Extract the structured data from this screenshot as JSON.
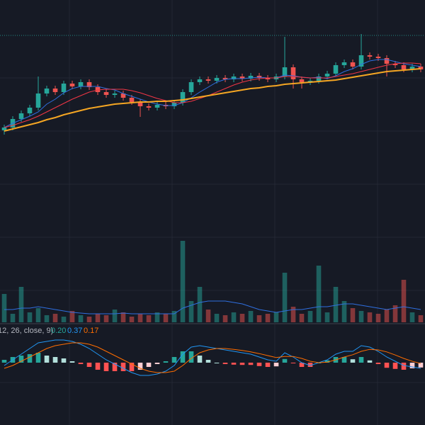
{
  "chart_data": {
    "type": "candlestick",
    "ylim": [
      0,
      330
    ],
    "price_line": 280,
    "open": [
      146,
      150,
      162,
      170,
      178,
      198,
      205,
      200,
      212,
      208,
      214,
      207,
      200,
      196,
      198,
      192,
      186,
      180,
      178,
      182,
      180,
      185,
      200,
      214,
      218,
      216,
      220,
      218,
      222,
      219,
      223,
      220,
      218,
      222,
      235,
      218,
      214,
      216,
      222,
      226,
      238,
      242,
      236,
      252,
      250,
      248,
      240,
      238,
      232,
      236
    ],
    "high": [
      154,
      166,
      174,
      182,
      222,
      209,
      209,
      216,
      216,
      218,
      218,
      211,
      204,
      202,
      202,
      196,
      190,
      184,
      186,
      186,
      189,
      204,
      218,
      222,
      222,
      224,
      224,
      226,
      226,
      227,
      227,
      224,
      226,
      278,
      239,
      222,
      220,
      226,
      230,
      242,
      246,
      246,
      282,
      256,
      254,
      252,
      244,
      242,
      240,
      240
    ],
    "low": [
      140,
      146,
      158,
      166,
      174,
      194,
      196,
      196,
      204,
      204,
      203,
      196,
      192,
      192,
      188,
      182,
      165,
      174,
      174,
      176,
      176,
      181,
      196,
      210,
      212,
      212,
      214,
      214,
      215,
      215,
      216,
      214,
      214,
      218,
      205,
      205,
      210,
      212,
      218,
      222,
      234,
      232,
      232,
      246,
      244,
      222,
      234,
      228,
      228,
      228
    ],
    "close": [
      150,
      162,
      170,
      178,
      198,
      205,
      200,
      212,
      208,
      214,
      207,
      200,
      196,
      198,
      192,
      186,
      180,
      178,
      182,
      180,
      185,
      200,
      214,
      218,
      216,
      220,
      218,
      222,
      219,
      223,
      220,
      218,
      222,
      235,
      218,
      214,
      216,
      222,
      226,
      238,
      242,
      236,
      252,
      250,
      248,
      240,
      238,
      232,
      236,
      232
    ],
    "up_color": "#26a69a",
    "down_color": "#ef5350",
    "ma_series": [
      {
        "color": "#2f6fe0",
        "values": [
          150,
          156,
          161,
          166,
          172,
          183,
          190,
          199,
          205,
          208,
          208,
          208,
          205,
          203,
          198,
          194,
          190,
          186,
          183,
          181,
          181,
          185,
          192,
          200,
          207,
          214,
          218,
          219,
          219,
          220,
          221,
          220,
          220,
          224,
          223,
          221,
          220,
          221,
          219,
          223,
          229,
          233,
          239,
          244,
          246,
          246,
          243,
          240,
          238,
          236
        ]
      },
      {
        "color": "#f23645",
        "values": [
          150,
          153,
          157,
          161,
          166,
          172,
          178,
          184,
          190,
          195,
          200,
          203,
          204,
          204,
          204,
          202,
          199,
          195,
          191,
          188,
          185,
          185,
          187,
          191,
          195,
          200,
          205,
          210,
          214,
          217,
          219,
          220,
          220,
          222,
          222,
          221,
          220,
          220,
          220,
          222,
          224,
          226,
          229,
          232,
          235,
          238,
          240,
          241,
          241,
          240
        ]
      },
      {
        "color": "#f5a623",
        "values": [
          145,
          148,
          151,
          154,
          157,
          161,
          164,
          168,
          171,
          174,
          177,
          179,
          181,
          183,
          184,
          185,
          186,
          186,
          187,
          187,
          188,
          189,
          191,
          193,
          195,
          197,
          199,
          201,
          203,
          205,
          206,
          208,
          209,
          211,
          212,
          213,
          214,
          215,
          216,
          217,
          219,
          221,
          223,
          225,
          227,
          229,
          230,
          231,
          232,
          233
        ]
      }
    ],
    "volume_lim": [
      0,
      130
    ],
    "volume": [
      40,
      12,
      50,
      14,
      20,
      10,
      12,
      8,
      16,
      10,
      8,
      12,
      10,
      18,
      14,
      8,
      12,
      10,
      14,
      12,
      16,
      115,
      30,
      50,
      18,
      12,
      10,
      14,
      12,
      16,
      10,
      12,
      14,
      70,
      22,
      12,
      16,
      80,
      14,
      50,
      30,
      20,
      16,
      14,
      12,
      18,
      24,
      60,
      14,
      10
    ],
    "volume_ma": {
      "color": "#2f6fe0",
      "values": [
        18,
        18,
        20,
        20,
        22,
        20,
        18,
        16,
        14,
        13,
        12,
        12,
        12,
        12,
        13,
        12,
        12,
        12,
        12,
        12,
        12,
        20,
        24,
        28,
        30,
        30,
        30,
        28,
        26,
        22,
        18,
        16,
        14,
        16,
        18,
        18,
        20,
        22,
        22,
        24,
        26,
        26,
        24,
        22,
        20,
        18,
        20,
        22,
        20,
        18
      ]
    },
    "macd_lim": [
      -1.1,
      1.1
    ],
    "macd_legend": {
      "params": "12, 26, close, 9)",
      "values": [
        "0.20",
        "0.37",
        "0.17"
      ],
      "colors": [
        "#26a69a",
        "#2196f3",
        "#ff6d00"
      ]
    },
    "macd": {
      "color": "#2196f3",
      "values": [
        -0.1,
        0.1,
        0.3,
        0.5,
        0.7,
        0.75,
        0.8,
        0.8,
        0.75,
        0.65,
        0.5,
        0.3,
        0.1,
        -0.05,
        -0.2,
        -0.35,
        -0.45,
        -0.45,
        -0.4,
        -0.3,
        -0.1,
        0.3,
        0.55,
        0.6,
        0.55,
        0.5,
        0.45,
        0.4,
        0.35,
        0.3,
        0.2,
        0.1,
        0.05,
        0.35,
        0.2,
        0.0,
        -0.1,
        0.0,
        0.1,
        0.3,
        0.4,
        0.4,
        0.6,
        0.55,
        0.4,
        0.2,
        0.05,
        -0.1,
        -0.15,
        -0.2
      ]
    },
    "signal": {
      "color": "#ff6d00",
      "values": [
        -0.2,
        -0.1,
        0.05,
        0.2,
        0.35,
        0.5,
        0.6,
        0.65,
        0.7,
        0.7,
        0.65,
        0.55,
        0.4,
        0.25,
        0.1,
        -0.05,
        -0.2,
        -0.3,
        -0.35,
        -0.35,
        -0.3,
        -0.1,
        0.15,
        0.35,
        0.45,
        0.5,
        0.5,
        0.47,
        0.43,
        0.38,
        0.32,
        0.25,
        0.18,
        0.22,
        0.22,
        0.15,
        0.05,
        0.0,
        0.02,
        0.1,
        0.2,
        0.28,
        0.4,
        0.47,
        0.45,
        0.38,
        0.27,
        0.15,
        0.05,
        -0.03
      ]
    },
    "histogram": [
      0.1,
      0.2,
      0.25,
      0.3,
      0.35,
      0.25,
      0.2,
      0.15,
      0.05,
      -0.05,
      -0.15,
      -0.25,
      -0.3,
      -0.3,
      -0.3,
      -0.3,
      -0.25,
      -0.15,
      -0.05,
      0.05,
      0.2,
      0.4,
      0.4,
      0.25,
      0.1,
      0,
      -0.05,
      -0.07,
      -0.08,
      -0.08,
      -0.12,
      -0.15,
      -0.13,
      0.13,
      -0.02,
      -0.15,
      -0.15,
      0,
      0.08,
      0.2,
      0.2,
      0.12,
      0.2,
      0.08,
      -0.05,
      -0.18,
      -0.22,
      -0.25,
      -0.2,
      -0.17
    ]
  }
}
